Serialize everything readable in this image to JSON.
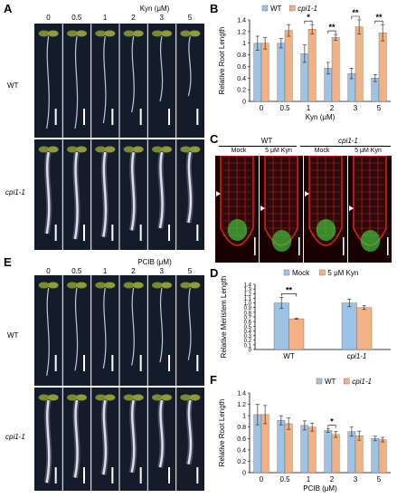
{
  "panels": {
    "A": {
      "label": "A",
      "axis_title": "Kyn (μM)",
      "concentrations": [
        "0",
        "0.5",
        "1",
        "2",
        "3",
        "5"
      ],
      "rows": [
        "WT",
        "cpi1-1"
      ]
    },
    "C": {
      "label": "C",
      "header_left": "WT",
      "header_right": "cpi1-1",
      "conditions": [
        "Mock",
        "5 μM Kyn",
        "Mock",
        "5 μM Kyn"
      ]
    },
    "E": {
      "label": "E",
      "axis_title": "PCIB (μM)",
      "concentrations": [
        "0",
        "0.5",
        "1",
        "2",
        "3",
        "5"
      ],
      "rows": [
        "WT",
        "cpi1-1"
      ]
    }
  },
  "colors": {
    "wt": "#9dc3e6",
    "cpi": "#f4b183",
    "seedling_bg": "#141c2c",
    "confocal_bg": "#1a0000",
    "cell_wall": "#e02020",
    "gfp": "#40d040"
  },
  "chart_data": [
    {
      "id": "B",
      "label": "B",
      "type": "bar",
      "categories": [
        "0",
        "0.5",
        "1",
        "2",
        "3",
        "5"
      ],
      "xlabel": "Kyn (μM)",
      "ylabel": "Relative Root Length",
      "ylim": [
        0,
        1.4
      ],
      "yticks": [
        "0",
        "0.2",
        "0.4",
        "0.6",
        "0.8",
        "1",
        "1.2",
        "1.4"
      ],
      "legend_position": "top",
      "series": [
        {
          "name": "WT",
          "values": [
            1.0,
            1.0,
            0.82,
            0.57,
            0.48,
            0.4
          ],
          "errors": [
            0.12,
            0.08,
            0.15,
            0.1,
            0.09,
            0.06
          ]
        },
        {
          "name": "cpi1-1",
          "values": [
            1.0,
            1.22,
            1.24,
            1.1,
            1.28,
            1.18
          ],
          "errors": [
            0.1,
            0.1,
            0.08,
            0.05,
            0.12,
            0.14
          ]
        }
      ],
      "significance": [
        {
          "category": "1",
          "mark": "*"
        },
        {
          "category": "2",
          "mark": "**"
        },
        {
          "category": "3",
          "mark": "**"
        },
        {
          "category": "5",
          "mark": "**"
        }
      ]
    },
    {
      "id": "D",
      "label": "D",
      "type": "bar",
      "categories": [
        "WT",
        "cpi1-1"
      ],
      "ylabel": "Relative Meristem Length",
      "ylim": [
        0,
        1.4
      ],
      "yticks": [
        "0",
        "0.1",
        "0.2",
        "0.3",
        "0.4",
        "0.5",
        "0.6",
        "0.7",
        "0.8",
        "0.9",
        "1.0",
        "1.1",
        "1.2",
        "1.3",
        "1.4"
      ],
      "legend_position": "top",
      "series": [
        {
          "name": "Mock",
          "values": [
            1.0,
            1.0
          ],
          "errors": [
            0.12,
            0.08
          ]
        },
        {
          "name": "5 μM Kyn",
          "values": [
            0.66,
            0.9
          ],
          "errors": [
            0.01,
            0.04
          ]
        }
      ],
      "significance": [
        {
          "category": "WT",
          "mark": "**"
        }
      ]
    },
    {
      "id": "F",
      "label": "F",
      "type": "bar",
      "categories": [
        "0",
        "0.5",
        "1",
        "2",
        "3",
        "5"
      ],
      "xlabel": "PCIB (μM)",
      "ylabel": "Relative Root Length",
      "ylim": [
        0,
        1.4
      ],
      "yticks": [
        "0",
        "0.2",
        "0.4",
        "0.6",
        "0.8",
        "1",
        "1.2",
        "1.4"
      ],
      "legend_position": "top-right",
      "series": [
        {
          "name": "WT",
          "values": [
            1.02,
            0.92,
            0.83,
            0.74,
            0.72,
            0.6
          ],
          "errors": [
            0.18,
            0.08,
            0.08,
            0.03,
            0.08,
            0.04
          ]
        },
        {
          "name": "cpi1-1",
          "values": [
            1.02,
            0.86,
            0.8,
            0.67,
            0.65,
            0.58
          ],
          "errors": [
            0.16,
            0.1,
            0.07,
            0.05,
            0.08,
            0.04
          ]
        }
      ],
      "significance": [
        {
          "category": "2",
          "mark": "*"
        }
      ]
    }
  ]
}
